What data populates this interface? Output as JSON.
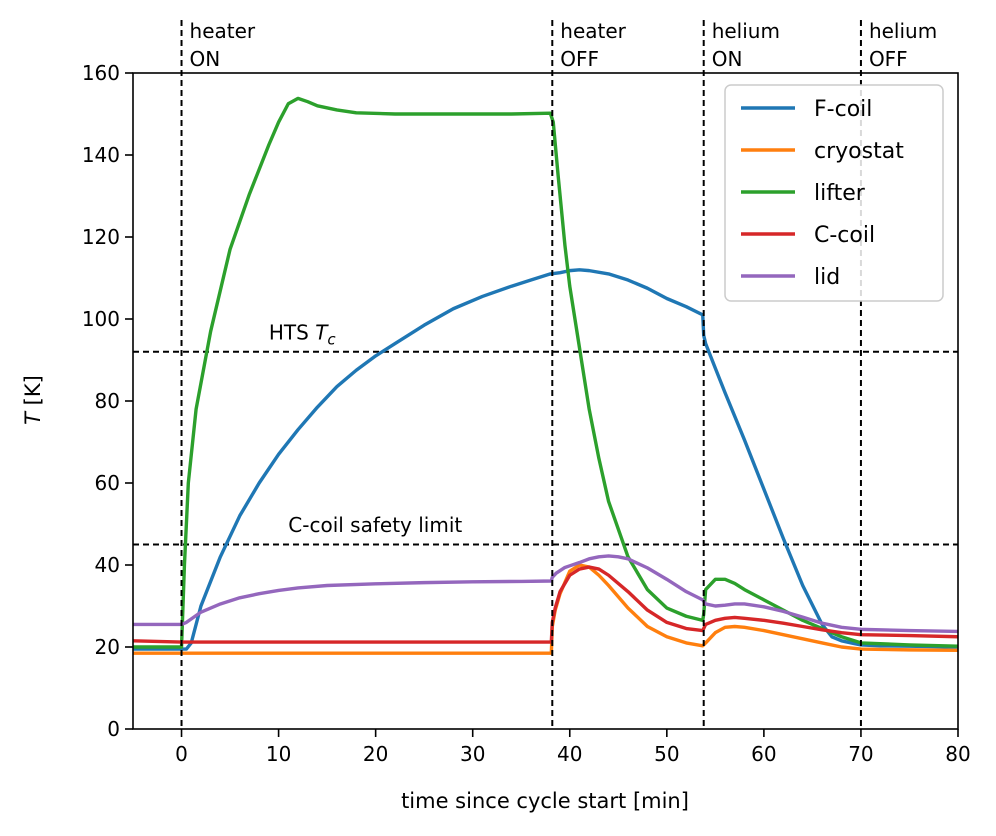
{
  "chart_data": {
    "type": "line",
    "xlabel": "time since cycle start [min]",
    "ylabel_italic": "T",
    "ylabel_rest": " [K]",
    "xlim": [
      -5,
      80
    ],
    "ylim": [
      0,
      160
    ],
    "xticks": [
      0,
      10,
      20,
      30,
      40,
      50,
      60,
      70,
      80
    ],
    "yticks": [
      0,
      20,
      40,
      60,
      80,
      100,
      120,
      140,
      160
    ],
    "vlines": [
      {
        "x": 0,
        "line1": "heater",
        "line2": "ON"
      },
      {
        "x": 38.2,
        "line1": "heater",
        "line2": "OFF"
      },
      {
        "x": 53.8,
        "line1": "helium",
        "line2": "ON"
      },
      {
        "x": 70,
        "line1": "helium",
        "line2": "OFF"
      }
    ],
    "hlines": [
      {
        "y": 92,
        "label_prefix": "HTS ",
        "label_italic": "T",
        "label_sub": "c",
        "label_x": 9,
        "label_y": 95
      },
      {
        "y": 45,
        "label": "C-coil safety limit",
        "label_x": 11,
        "label_y": 48
      }
    ],
    "legend_position": "top-right",
    "series": [
      {
        "name": "F-coil",
        "color": "#1f77b4",
        "x": [
          -5,
          0,
          0.5,
          1,
          2,
          4,
          6,
          8,
          10,
          12,
          14,
          16,
          18,
          20,
          22,
          25,
          28,
          31,
          34,
          36,
          38,
          39,
          40,
          41,
          42,
          44,
          46,
          48,
          50,
          52,
          53.7,
          53.8,
          54,
          55,
          56,
          58,
          60,
          62,
          64,
          66,
          67,
          68,
          69,
          70,
          72,
          75,
          80
        ],
        "y": [
          19.5,
          19.5,
          19.5,
          21,
          30,
          42,
          52,
          60,
          67,
          73,
          78.5,
          83.5,
          87.5,
          91,
          94,
          98.5,
          102.5,
          105.5,
          108,
          109.5,
          111,
          111.3,
          111.8,
          112,
          111.8,
          111,
          109.5,
          107.5,
          105,
          103,
          101,
          96,
          94,
          88,
          82,
          70.5,
          58.5,
          46.5,
          35,
          25.5,
          22.5,
          21.5,
          21,
          20.5,
          20.3,
          20.2,
          20
        ]
      },
      {
        "name": "cryostat",
        "color": "#ff7f0e",
        "x": [
          -5,
          0,
          5,
          10,
          20,
          30,
          38.1,
          38.2,
          38.5,
          39,
          40,
          41,
          42,
          43,
          44,
          46,
          48,
          50,
          52,
          53.7,
          54,
          55,
          56,
          57,
          58,
          60,
          62,
          64,
          66,
          68,
          70,
          75,
          80
        ],
        "y": [
          18.5,
          18.5,
          18.5,
          18.5,
          18.5,
          18.5,
          18.5,
          25,
          29,
          33,
          38.5,
          40,
          39.5,
          37.5,
          35,
          29.5,
          25,
          22.5,
          21,
          20.3,
          21,
          23.5,
          24.8,
          25,
          24.8,
          24,
          23,
          22,
          21,
          20,
          19.5,
          19.3,
          19.2
        ]
      },
      {
        "name": "lifter",
        "color": "#2ca02c",
        "x": [
          -5,
          0,
          0.3,
          0.7,
          1.5,
          3,
          5,
          7,
          9,
          10,
          11,
          12,
          13,
          14,
          16,
          18,
          22,
          26,
          30,
          34,
          38,
          38.3,
          38.8,
          39.5,
          40,
          41,
          42,
          43,
          44,
          46,
          48,
          50,
          52,
          53.7,
          53.8,
          54,
          55,
          56,
          57,
          58,
          60,
          62,
          64,
          66,
          68,
          70,
          75,
          80
        ],
        "y": [
          20,
          20,
          40,
          60,
          78,
          97,
          117,
          130.5,
          142.5,
          148,
          152.5,
          153.8,
          153,
          152,
          151,
          150.3,
          150,
          150,
          150,
          150,
          150.2,
          148,
          135,
          118,
          108,
          93,
          78,
          66,
          55.5,
          42,
          34,
          29.5,
          27.5,
          26.5,
          28,
          34,
          36.5,
          36.5,
          35.5,
          34,
          31.5,
          29,
          26.5,
          24.5,
          22.5,
          21,
          20.5,
          20.2
        ]
      },
      {
        "name": "C-coil",
        "color": "#d62728",
        "x": [
          -5,
          0,
          5,
          10,
          20,
          30,
          38.1,
          38.2,
          38.5,
          39,
          40,
          41,
          42,
          43,
          44,
          46,
          48,
          50,
          52,
          53.7,
          54,
          55,
          56,
          57,
          58,
          60,
          62,
          64,
          66,
          68,
          70,
          75,
          80
        ],
        "y": [
          21.5,
          21.2,
          21.2,
          21.2,
          21.2,
          21.2,
          21.2,
          26,
          29.5,
          33.5,
          37.5,
          39,
          39.5,
          39,
          37.5,
          33.5,
          29,
          26,
          24.5,
          24,
          25.5,
          26.5,
          27,
          27.2,
          27,
          26.5,
          25.8,
          25,
          24.2,
          23.5,
          23,
          22.8,
          22.5
        ]
      },
      {
        "name": "lid",
        "color": "#9467bd",
        "x": [
          -5,
          0,
          0.5,
          2,
          4,
          6,
          8,
          10,
          12,
          15,
          20,
          25,
          30,
          35,
          38.1,
          38.2,
          38.6,
          39.5,
          40,
          41,
          42,
          43,
          44,
          45,
          46,
          48,
          50,
          52,
          53.7,
          54,
          55,
          56,
          57,
          58,
          60,
          62,
          64,
          66,
          68,
          70,
          75,
          80
        ],
        "y": [
          25.5,
          25.5,
          26,
          28.5,
          30.5,
          32,
          33,
          33.8,
          34.4,
          35,
          35.4,
          35.7,
          35.9,
          36,
          36.1,
          37,
          38,
          39.4,
          39.8,
          40.6,
          41.5,
          42,
          42.2,
          42,
          41.5,
          39.3,
          36.5,
          33.5,
          31.5,
          30.5,
          30,
          30.2,
          30.5,
          30.5,
          29.8,
          28.7,
          27.3,
          25.8,
          24.8,
          24.3,
          24,
          23.8
        ]
      }
    ]
  }
}
